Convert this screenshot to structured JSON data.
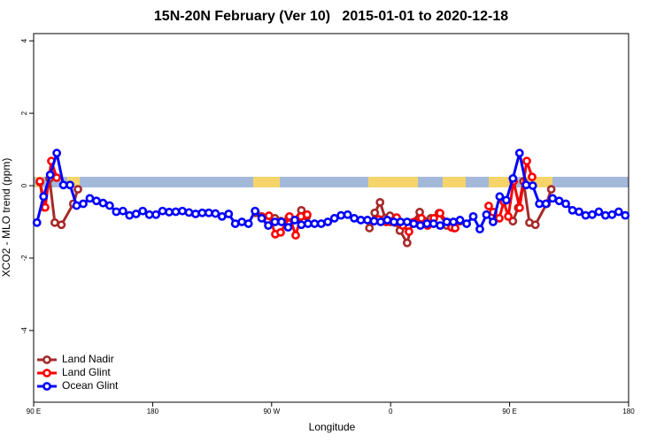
{
  "chart_data": {
    "type": "line",
    "title": "15N-20N February (Ver 10)   2015-01-01 to 2020-12-18",
    "xlabel": "Longitude",
    "ylabel": "XCO2 - MLO trend (ppm)",
    "xlim": [
      90,
      540
    ],
    "ylim": [
      -5.98,
      4.2
    ],
    "xticks": [
      {
        "value": 90,
        "label": "90 E"
      },
      180,
      {
        "value": 270,
        "label": "90 W"
      },
      {
        "value": 360,
        "label": "0"
      },
      {
        "value": 450,
        "label": "90 E"
      },
      {
        "value": 540,
        "label": "180"
      }
    ],
    "yticks": [
      -4,
      -2,
      0,
      2,
      4
    ],
    "grid": false,
    "legend": "bottomleft",
    "series": [
      {
        "name": "Land Nadir",
        "color": "#a52a2a",
        "x": [
          94.7,
          98,
          102,
          106,
          111,
          120,
          123.5,
          null,
          258,
          262.5,
          267,
          272.5,
          277,
          283,
          287,
          292.5,
          296.5,
          null,
          344,
          348,
          352,
          356,
          359.5,
          363.5,
          367,
          372.5,
          376.5,
          382,
          386,
          390.5,
          396.5,
          402.5,
          408,
          412.5,
          null,
          452.5,
          456.5,
          460.5,
          465,
          469.5,
          478,
          481.5
        ],
        "values": [
          0.1,
          -0.6,
          0.2,
          -1.02,
          -1.08,
          -0.5,
          -0.1,
          null,
          -0.75,
          -0.85,
          -0.98,
          -0.9,
          -0.98,
          -0.88,
          -0.95,
          -0.68,
          -0.85,
          null,
          -1.17,
          -0.75,
          -0.46,
          -0.9,
          -0.83,
          -1.02,
          -1.24,
          -1.58,
          -1.02,
          -0.73,
          -0.98,
          -0.9,
          -0.76,
          -1.1,
          -1.17,
          -0.98,
          null,
          -0.98,
          -0.61,
          0.12,
          -1.02,
          -1.08,
          -0.5,
          -0.1
        ]
      },
      {
        "name": "Land Glint",
        "color": "#ff0000",
        "x": [
          94.7,
          98.7,
          103.4,
          107.4,
          null,
          263.4,
          268,
          272.8,
          276.8,
          283.5,
          288.2,
          292.2,
          296.9,
          null,
          351.2,
          356.5,
          359.9,
          364.6,
          369.2,
          373.9,
          377.9,
          383.3,
          388,
          392.7,
          397.4,
          406.1,
          408.8,
          null,
          434.2,
          437.6,
          442.2,
          445.6,
          449,
          453,
          457.6,
          463,
          467
        ],
        "values": [
          0.12,
          -0.6,
          0.68,
          0.22,
          null,
          -0.88,
          -0.83,
          -1.34,
          -1.29,
          -0.85,
          -1.37,
          -0.85,
          -0.8,
          null,
          -0.93,
          -1.0,
          -1.0,
          -0.88,
          -1.1,
          -1.27,
          -1.0,
          -0.9,
          -1.1,
          -0.9,
          -0.76,
          -1.15,
          -1.17,
          null,
          -0.56,
          -0.73,
          -0.9,
          -0.44,
          -0.85,
          0.12,
          -0.61,
          0.68,
          0.24
        ]
      },
      {
        "name": "Ocean Glint",
        "color": "#0000ff",
        "x": [
          92.5,
          97.5,
          102.5,
          107.5,
          112.5,
          117.5,
          122.5,
          127.5,
          132.5,
          137.5,
          142.5,
          147.5,
          152.5,
          157.5,
          162.5,
          167.5,
          172.5,
          177.5,
          182.5,
          187.5,
          192.5,
          197.5,
          202.5,
          207.5,
          212.5,
          217.5,
          222.5,
          227.5,
          232.5,
          237.5,
          242.5,
          247.5,
          252.5,
          257.5,
          262.5,
          267.5,
          272.5,
          277.5,
          282.5,
          287.5,
          292.5,
          297.5,
          302.5,
          307.5,
          312.5,
          317.5,
          322.5,
          327.5,
          332.5,
          337.5,
          342.5,
          347.5,
          352.5,
          357.5,
          362.5,
          367.5,
          372.5,
          377.5,
          382.5,
          387.5,
          392.5,
          397.5,
          402.5,
          407.5,
          412.5,
          417.5,
          422.5,
          427.5,
          432.5,
          437.5,
          442.5,
          447.5,
          452.5,
          457.5,
          462.5,
          467.5,
          472.5,
          477.5,
          482.5,
          487.5,
          492.5,
          497.5,
          502.5,
          507.5,
          512.5,
          517.5,
          522.5,
          527.5,
          532.5,
          537.5
        ],
        "values": [
          -1.02,
          -0.3,
          0.3,
          0.9,
          0.02,
          0.02,
          -0.55,
          -0.5,
          -0.35,
          -0.42,
          -0.48,
          -0.55,
          -0.72,
          -0.7,
          -0.82,
          -0.78,
          -0.7,
          -0.8,
          -0.8,
          -0.7,
          -0.73,
          -0.72,
          -0.7,
          -0.74,
          -0.78,
          -0.75,
          -0.75,
          -0.77,
          -0.85,
          -0.78,
          -1.05,
          -1.0,
          -1.05,
          -0.7,
          -0.9,
          -1.1,
          -1.0,
          -1.0,
          -1.15,
          -0.95,
          -1.08,
          -1.05,
          -1.05,
          -1.05,
          -1.0,
          -0.9,
          -0.82,
          -0.8,
          -0.9,
          -0.95,
          -0.95,
          -0.98,
          -1.0,
          -0.95,
          -1.0,
          -1.0,
          -1.0,
          -1.05,
          -1.1,
          -1.05,
          -1.05,
          -1.1,
          -1.0,
          -1.0,
          -0.95,
          -1.05,
          -0.85,
          -1.2,
          -0.8,
          -1.0,
          -0.3,
          -0.4,
          0.2,
          0.9,
          0.02,
          0.0,
          -0.5,
          -0.5,
          -0.35,
          -0.42,
          -0.5,
          -0.68,
          -0.72,
          -0.82,
          -0.8,
          -0.72,
          -0.82,
          -0.8,
          -0.72,
          -0.82
        ]
      }
    ]
  }
}
